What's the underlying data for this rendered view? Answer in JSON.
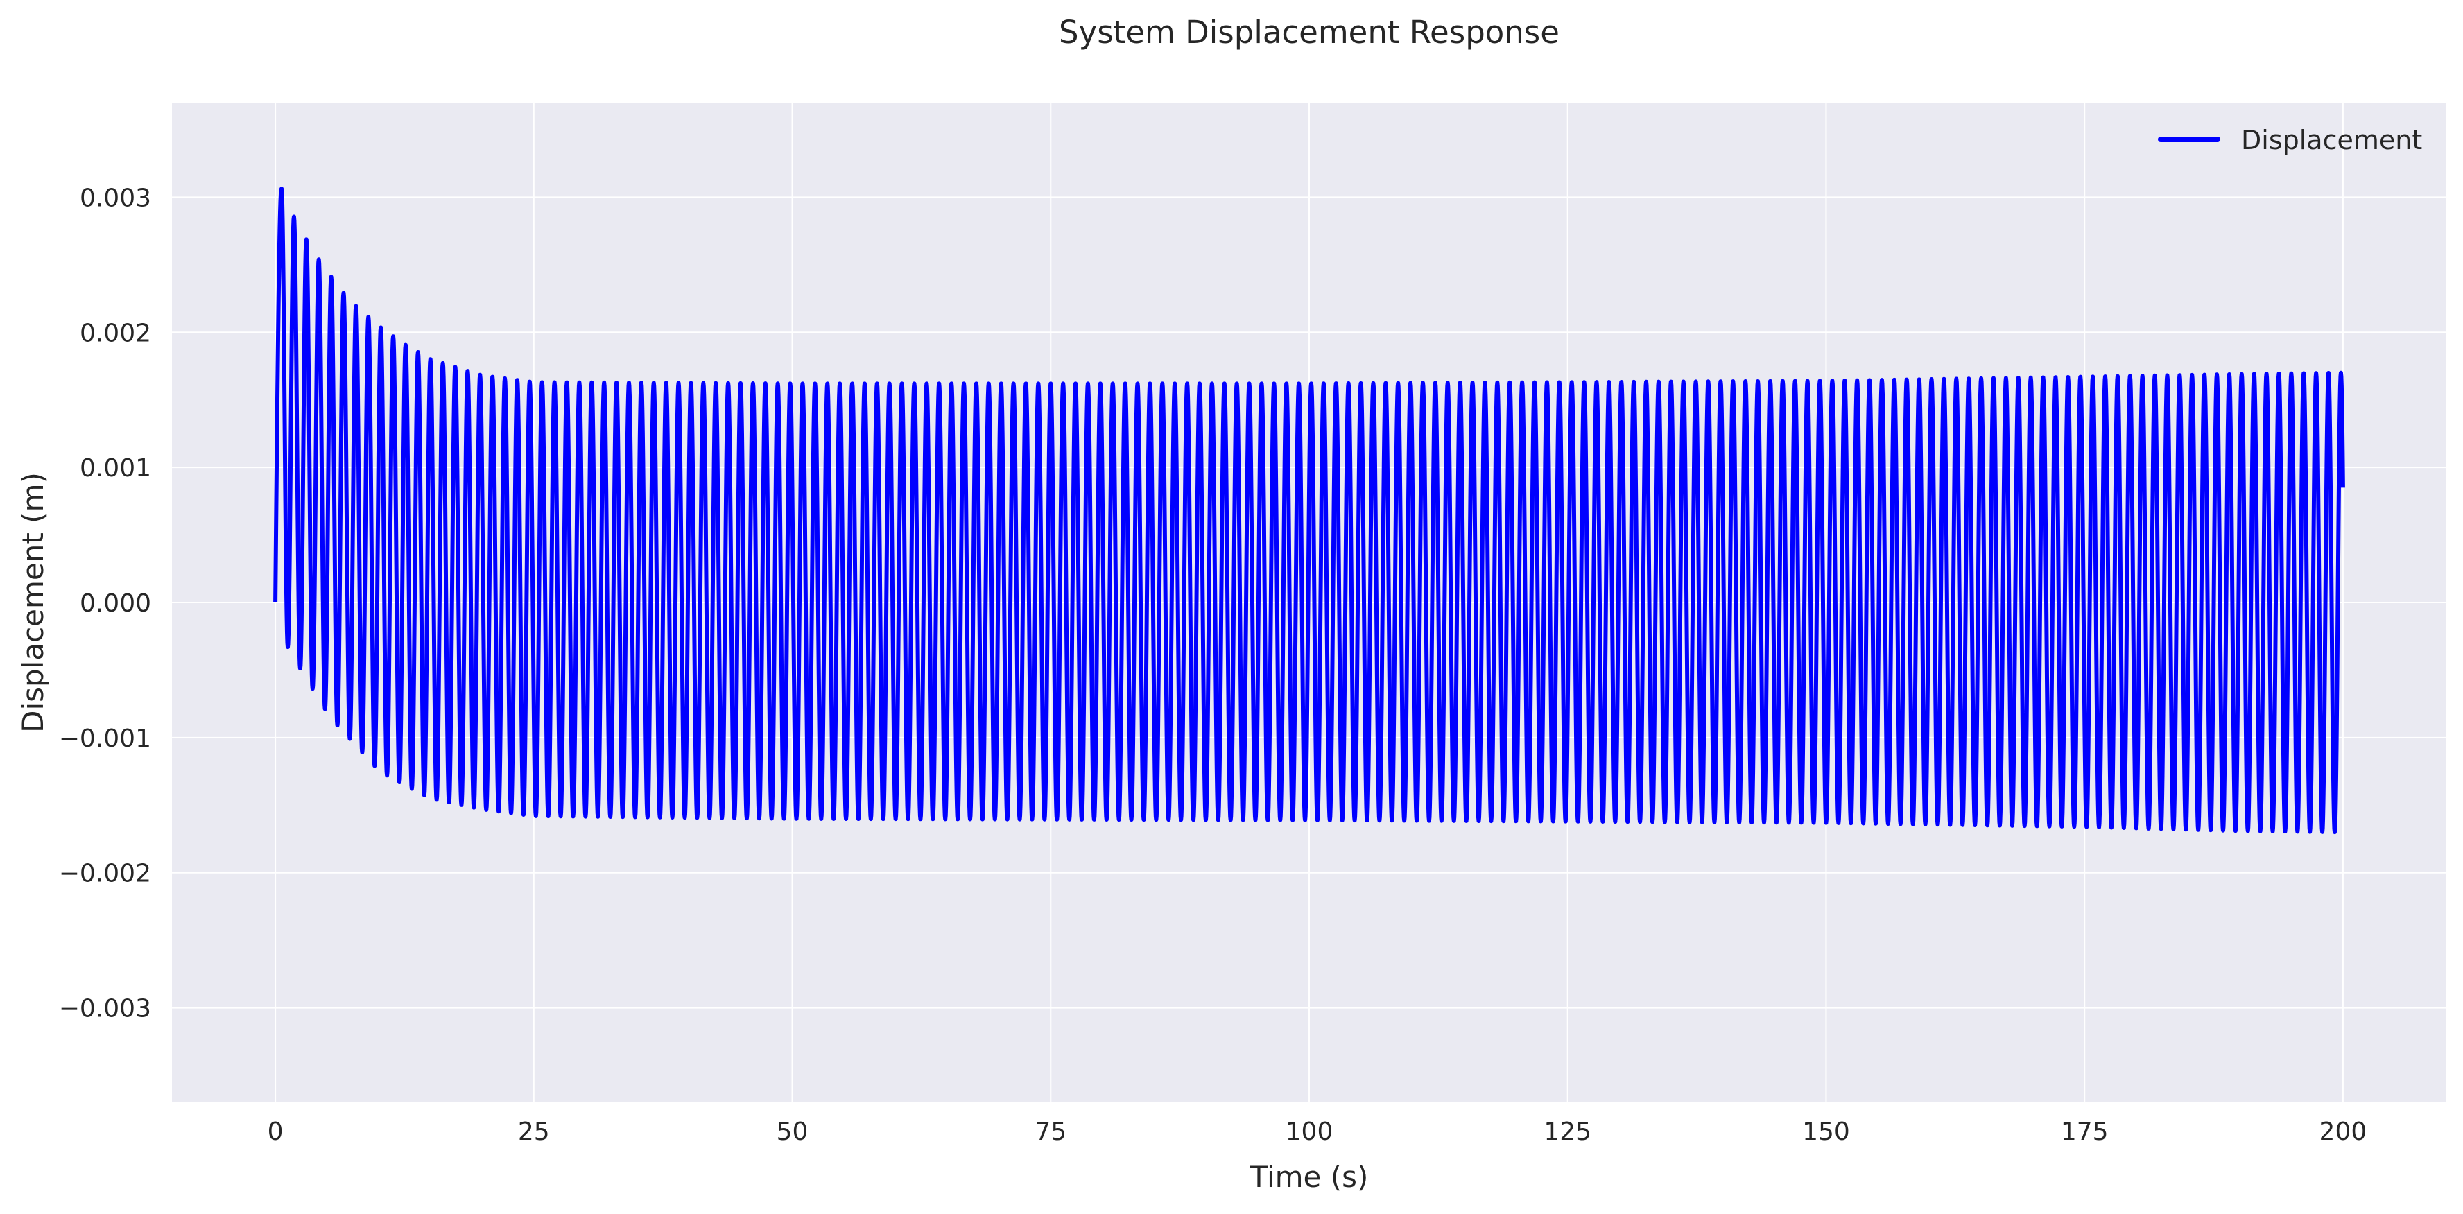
{
  "chart_data": {
    "type": "line",
    "title": "System Displacement Response",
    "xlabel": "Time (s)",
    "ylabel": "Displacement (m)",
    "xlim": [
      -10,
      210
    ],
    "ylim": [
      -0.0037,
      0.0037
    ],
    "xticks": [
      0,
      25,
      50,
      75,
      100,
      125,
      150,
      175,
      200
    ],
    "xtick_labels": [
      "0",
      "25",
      "50",
      "75",
      "100",
      "125",
      "150",
      "175",
      "200"
    ],
    "yticks": [
      0.003,
      0.002,
      0.001,
      0.0,
      -0.001,
      -0.002,
      -0.003
    ],
    "ytick_labels": [
      "0.003",
      "0.002",
      "0.001",
      "0.000",
      "−0.001",
      "−0.002",
      "−0.003"
    ],
    "grid": true,
    "legend_position": "top-right",
    "series": [
      {
        "name": "Displacement",
        "color": "#0000ff",
        "x_start": 0,
        "x_end": 200,
        "period": 1.2,
        "envelope_peaks": {
          "x": [
            0.5,
            1.7,
            2.9,
            4.1,
            5.3,
            6.5,
            7.7,
            8.9,
            10.1,
            12.5,
            15,
            20,
            25,
            50,
            100,
            150,
            175,
            190,
            200
          ],
          "upper": [
            0.00308,
            0.00287,
            0.0027,
            0.00255,
            0.00242,
            0.0023,
            0.0022,
            0.00212,
            0.00204,
            0.00191,
            0.0018,
            0.00168,
            0.00163,
            0.00162,
            0.00162,
            0.00164,
            0.00167,
            0.00169,
            0.0017
          ],
          "lower": [
            -0.00023,
            -0.0004,
            -0.00055,
            -0.0007,
            -0.00085,
            -0.00095,
            -0.00105,
            -0.00115,
            -0.00125,
            -0.00135,
            -0.00145,
            -0.00153,
            -0.00158,
            -0.0016,
            -0.00161,
            -0.00163,
            -0.00166,
            -0.00169,
            -0.0017
          ]
        }
      }
    ]
  }
}
